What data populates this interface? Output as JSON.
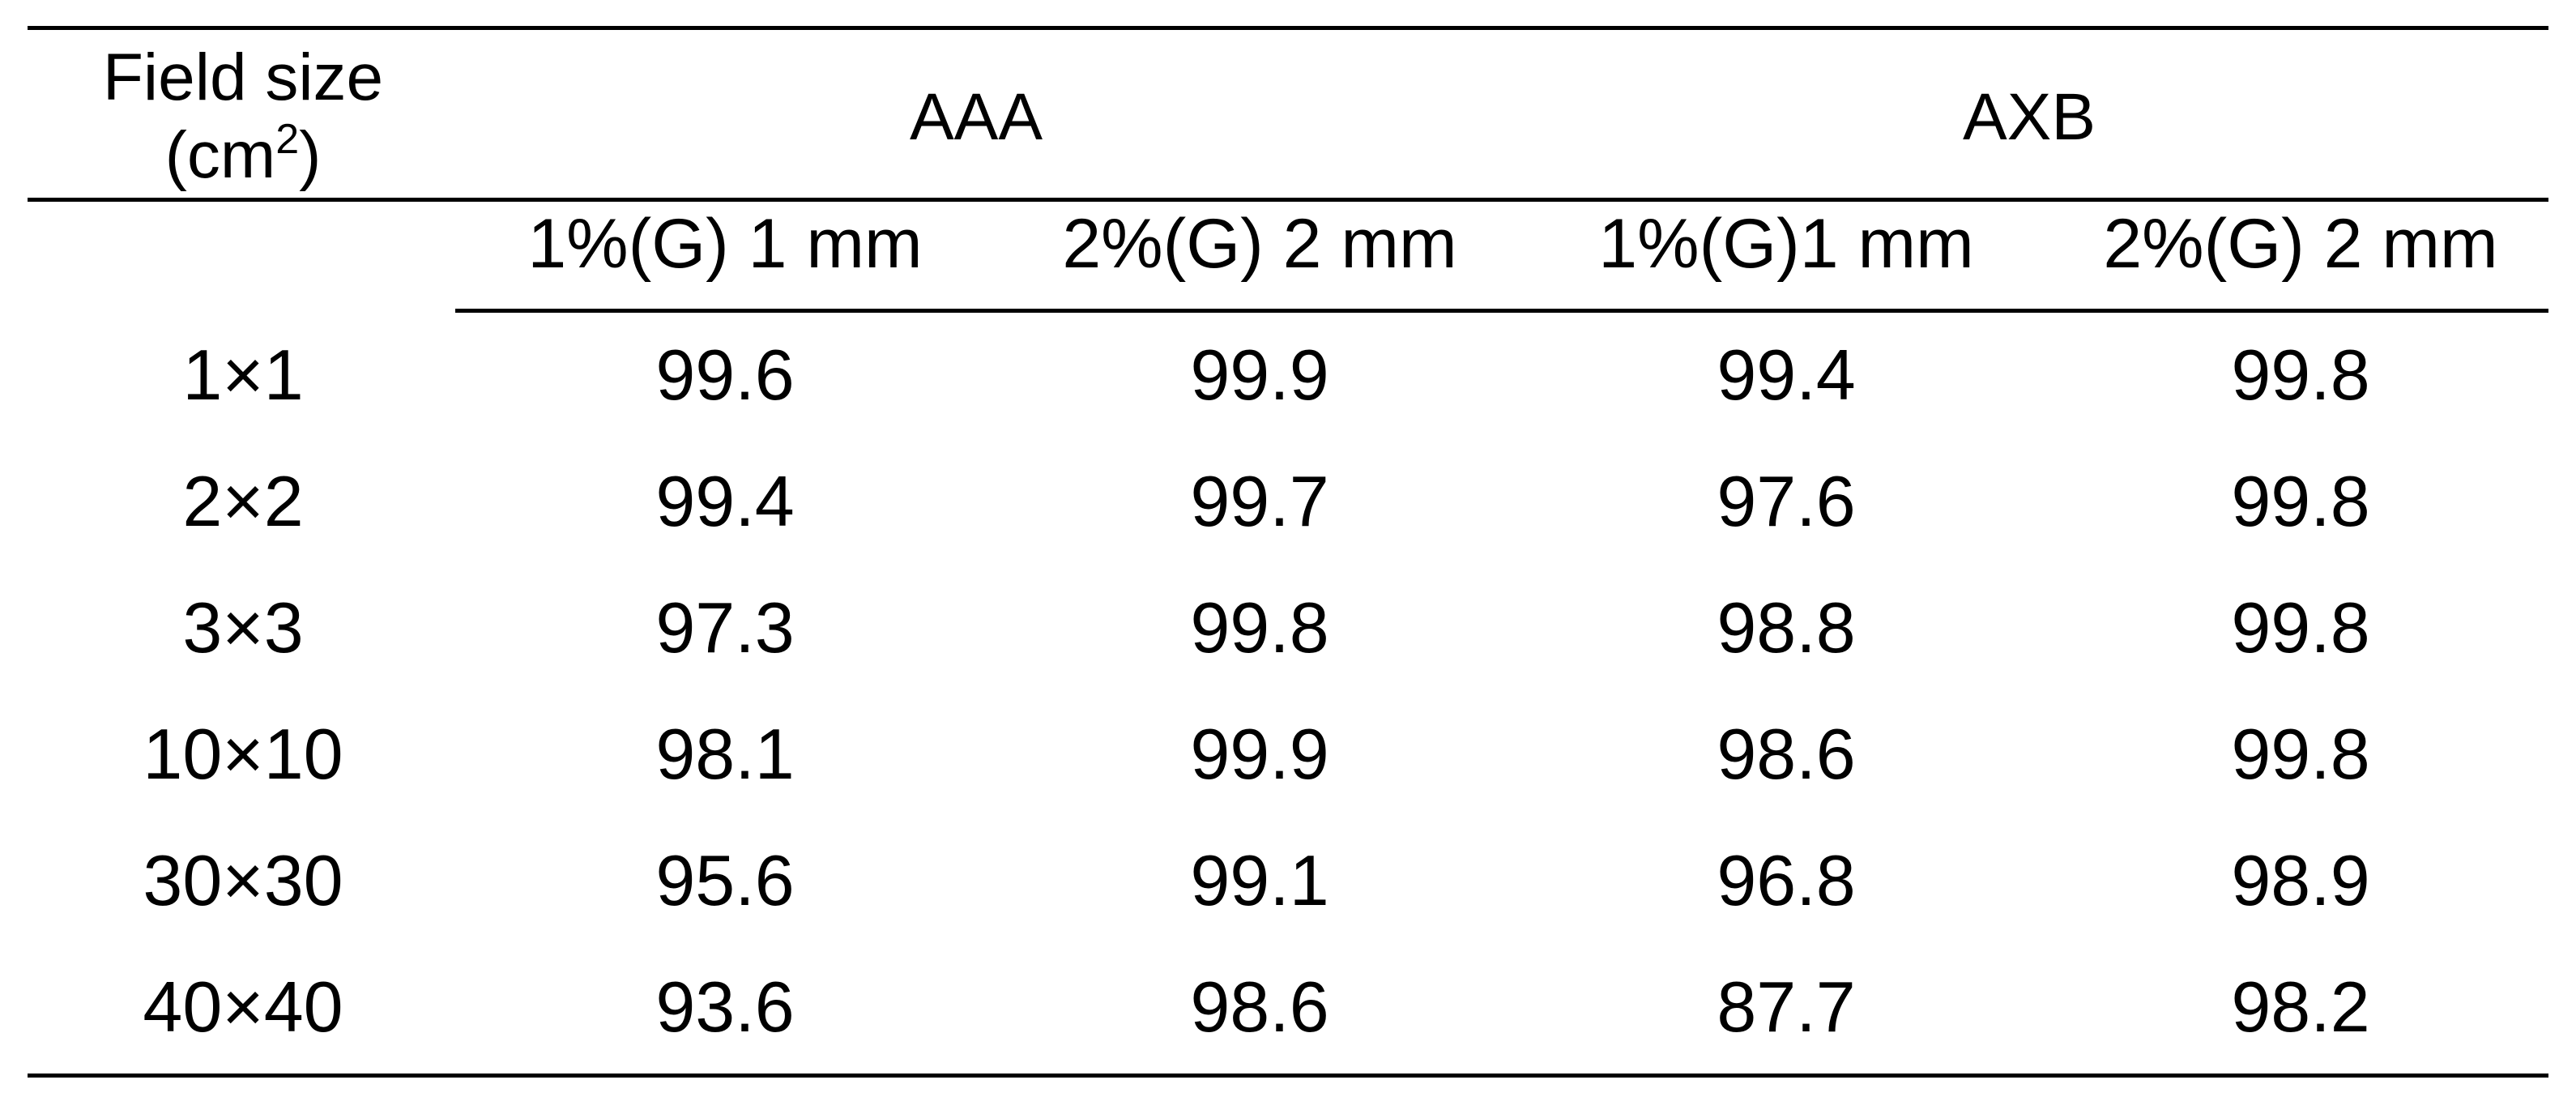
{
  "table": {
    "field_header_line1": "Field size",
    "field_header_unit_open": "(cm",
    "field_header_unit_sup": "2",
    "field_header_unit_close": ")",
    "groups": [
      {
        "label": "AAA"
      },
      {
        "label": "AXB"
      }
    ],
    "subheaders": [
      {
        "label": "1%(G) 1 mm"
      },
      {
        "label": "2%(G) 2 mm"
      },
      {
        "label": "1%(G)1 mm"
      },
      {
        "label": "2%(G) 2 mm"
      }
    ],
    "rows": [
      {
        "field": "1×1",
        "aaa_1": "99.6",
        "aaa_2": "99.9",
        "axb_1": "99.4",
        "axb_2": "99.8"
      },
      {
        "field": "2×2",
        "aaa_1": "99.4",
        "aaa_2": "99.7",
        "axb_1": "97.6",
        "axb_2": "99.8"
      },
      {
        "field": "3×3",
        "aaa_1": "97.3",
        "aaa_2": "99.8",
        "axb_1": "98.8",
        "axb_2": "99.8"
      },
      {
        "field": "10×10",
        "aaa_1": "98.1",
        "aaa_2": "99.9",
        "axb_1": "98.6",
        "axb_2": "99.8"
      },
      {
        "field": "30×30",
        "aaa_1": "95.6",
        "aaa_2": "99.1",
        "axb_1": "96.8",
        "axb_2": "98.9"
      },
      {
        "field": "40×40",
        "aaa_1": "93.6",
        "aaa_2": "98.6",
        "axb_1": "87.7",
        "axb_2": "98.2"
      }
    ]
  }
}
